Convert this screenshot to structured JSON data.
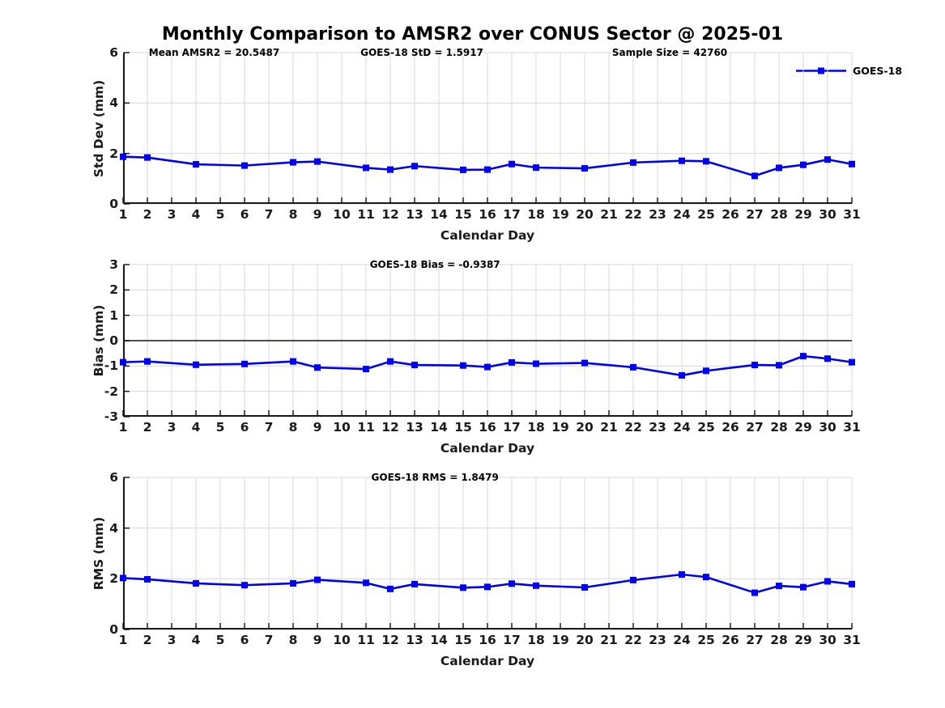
{
  "title": "Monthly Comparison to AMSR2 over CONUS Sector @ 2025-01",
  "stats": {
    "mean_amsr2": 20.5487,
    "goes18_std": 1.5917,
    "sample_size": 42760,
    "goes18_bias": -0.9387,
    "goes18_rms": 1.8479
  },
  "colors": {
    "line": "#0000f0",
    "axis": "#1a1a1a",
    "grid": "#d8d8d8",
    "zero_line": "#4d4d4d",
    "background": "#ffffff"
  },
  "legend": {
    "label": "GOES-18",
    "position": "top-right-above-first-plot"
  },
  "chart_data": [
    {
      "id": "stddev",
      "type": "line",
      "annotations": [
        "Mean AMSR2 = 20.5487",
        "GOES-18 StD = 1.5917",
        "Sample Size = 42760"
      ],
      "xlabel": "Calendar Day",
      "ylabel": "Std Dev (mm)",
      "xlim": [
        1,
        31
      ],
      "ylim": [
        0,
        6
      ],
      "xticks": [
        1,
        2,
        3,
        4,
        5,
        6,
        7,
        8,
        9,
        10,
        11,
        12,
        13,
        14,
        15,
        16,
        17,
        18,
        19,
        20,
        21,
        22,
        23,
        24,
        25,
        26,
        27,
        28,
        29,
        30,
        31
      ],
      "yticks": [
        0,
        2,
        4,
        6
      ],
      "grid": true,
      "zero_line": false,
      "series": [
        {
          "name": "GOES-18",
          "marker": "square",
          "x": [
            1,
            2,
            4,
            6,
            8,
            9,
            11,
            12,
            13,
            15,
            16,
            17,
            18,
            20,
            22,
            24,
            25,
            27,
            28,
            29,
            30,
            31
          ],
          "values": [
            1.87,
            1.84,
            1.57,
            1.52,
            1.65,
            1.68,
            1.43,
            1.36,
            1.5,
            1.35,
            1.36,
            1.58,
            1.44,
            1.41,
            1.64,
            1.71,
            1.69,
            1.11,
            1.43,
            1.55,
            1.76,
            1.58
          ]
        }
      ]
    },
    {
      "id": "bias",
      "type": "line",
      "annotations": [
        "GOES-18 Bias = -0.9387"
      ],
      "xlabel": "Calendar Day",
      "ylabel": "Bias (mm)",
      "xlim": [
        1,
        31
      ],
      "ylim": [
        -3,
        3
      ],
      "xticks": [
        1,
        2,
        3,
        4,
        5,
        6,
        7,
        8,
        9,
        10,
        11,
        12,
        13,
        14,
        15,
        16,
        17,
        18,
        19,
        20,
        21,
        22,
        23,
        24,
        25,
        26,
        27,
        28,
        29,
        30,
        31
      ],
      "yticks": [
        -3,
        -2,
        -1,
        0,
        1,
        2,
        3
      ],
      "grid": true,
      "zero_line": true,
      "series": [
        {
          "name": "GOES-18",
          "marker": "square",
          "x": [
            1,
            2,
            4,
            6,
            8,
            9,
            11,
            12,
            13,
            15,
            16,
            17,
            18,
            20,
            22,
            24,
            25,
            27,
            28,
            29,
            30,
            31
          ],
          "values": [
            -0.85,
            -0.82,
            -0.95,
            -0.92,
            -0.82,
            -1.06,
            -1.12,
            -0.82,
            -0.96,
            -0.98,
            -1.04,
            -0.86,
            -0.91,
            -0.88,
            -1.05,
            -1.37,
            -1.19,
            -0.96,
            -0.97,
            -0.61,
            -0.71,
            -0.85
          ]
        }
      ]
    },
    {
      "id": "rms",
      "type": "line",
      "annotations": [
        "GOES-18 RMS = 1.8479"
      ],
      "xlabel": "Calendar Day",
      "ylabel": "RMS (mm)",
      "xlim": [
        1,
        31
      ],
      "ylim": [
        0,
        6
      ],
      "xticks": [
        1,
        2,
        3,
        4,
        5,
        6,
        7,
        8,
        9,
        10,
        11,
        12,
        13,
        14,
        15,
        16,
        17,
        18,
        19,
        20,
        21,
        22,
        23,
        24,
        25,
        26,
        27,
        28,
        29,
        30,
        31
      ],
      "yticks": [
        0,
        2,
        4,
        6
      ],
      "grid": true,
      "zero_line": false,
      "series": [
        {
          "name": "GOES-18",
          "marker": "square",
          "x": [
            1,
            2,
            4,
            6,
            8,
            9,
            11,
            12,
            13,
            15,
            16,
            17,
            18,
            20,
            22,
            24,
            25,
            27,
            28,
            29,
            30,
            31
          ],
          "values": [
            2.03,
            1.98,
            1.82,
            1.75,
            1.82,
            1.96,
            1.84,
            1.6,
            1.79,
            1.65,
            1.68,
            1.81,
            1.73,
            1.66,
            1.95,
            2.17,
            2.07,
            1.45,
            1.72,
            1.67,
            1.9,
            1.79
          ]
        }
      ]
    }
  ]
}
